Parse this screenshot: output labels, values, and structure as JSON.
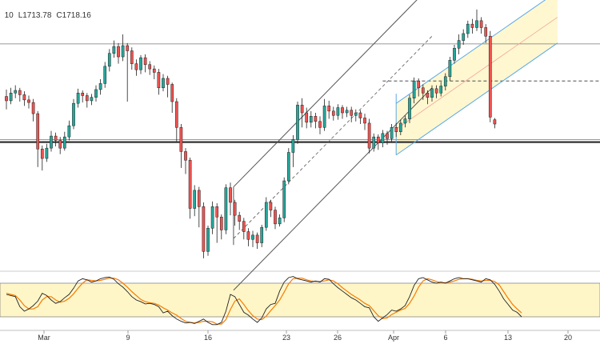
{
  "header": {
    "open_partial": "10",
    "low": "L1713.78",
    "close": "C1718.16"
  },
  "colors": {
    "up": "#26a69a",
    "down": "#ef5350",
    "ink": "#222222",
    "channel": "#5aa9e6",
    "band": "#fff6c8",
    "stoch_k": "#222222",
    "stoch_d": "#f57c00"
  },
  "chart_data": [
    {
      "type": "candlestick",
      "x_axis": {
        "ticks": [
          "Mar",
          "9",
          "16",
          "23",
          "26",
          "Apr",
          "6",
          "13",
          "20"
        ]
      },
      "x_range": [
        0,
        110
      ],
      "y_range": [
        1548,
        1862
      ],
      "candles": [
        [
          1750,
          1745,
          1735,
          1758
        ],
        [
          1745,
          1754,
          1741,
          1760
        ],
        [
          1754,
          1757,
          1748,
          1763
        ],
        [
          1757,
          1752,
          1744,
          1760
        ],
        [
          1752,
          1746,
          1739,
          1756
        ],
        [
          1746,
          1743,
          1736,
          1751
        ],
        [
          1743,
          1730,
          1721,
          1747
        ],
        [
          1730,
          1689,
          1668,
          1733
        ],
        [
          1689,
          1678,
          1664,
          1693
        ],
        [
          1678,
          1690,
          1674,
          1695
        ],
        [
          1690,
          1704,
          1686,
          1710
        ],
        [
          1704,
          1699,
          1692,
          1708
        ],
        [
          1699,
          1690,
          1683,
          1703
        ],
        [
          1690,
          1703,
          1687,
          1709
        ],
        [
          1703,
          1716,
          1699,
          1722
        ],
        [
          1716,
          1742,
          1712,
          1747
        ],
        [
          1742,
          1754,
          1737,
          1759
        ],
        [
          1754,
          1751,
          1743,
          1757
        ],
        [
          1751,
          1745,
          1737,
          1754
        ],
        [
          1745,
          1749,
          1740,
          1753
        ],
        [
          1749,
          1758,
          1744,
          1763
        ],
        [
          1758,
          1765,
          1752,
          1770
        ],
        [
          1765,
          1785,
          1760,
          1790
        ],
        [
          1785,
          1800,
          1779,
          1805
        ],
        [
          1800,
          1808,
          1795,
          1815
        ],
        [
          1808,
          1796,
          1788,
          1812
        ],
        [
          1796,
          1809,
          1791,
          1822
        ],
        [
          1809,
          1803,
          1744,
          1812
        ],
        [
          1803,
          1788,
          1781,
          1807
        ],
        [
          1788,
          1781,
          1774,
          1793
        ],
        [
          1781,
          1795,
          1776,
          1798
        ],
        [
          1795,
          1787,
          1778,
          1799
        ],
        [
          1787,
          1782,
          1775,
          1791
        ],
        [
          1782,
          1778,
          1770,
          1786
        ],
        [
          1778,
          1760,
          1752,
          1782
        ],
        [
          1760,
          1771,
          1756,
          1776
        ],
        [
          1771,
          1764,
          1749,
          1774
        ],
        [
          1764,
          1744,
          1731,
          1766
        ],
        [
          1744,
          1714,
          1698,
          1748
        ],
        [
          1714,
          1686,
          1667,
          1718
        ],
        [
          1686,
          1676,
          1660,
          1690
        ],
        [
          1676,
          1620,
          1608,
          1679
        ],
        [
          1620,
          1641,
          1611,
          1647
        ],
        [
          1641,
          1622,
          1598,
          1645
        ],
        [
          1622,
          1570,
          1562,
          1627
        ],
        [
          1570,
          1597,
          1565,
          1600
        ],
        [
          1597,
          1622,
          1590,
          1628
        ],
        [
          1622,
          1610,
          1580,
          1626
        ],
        [
          1610,
          1595,
          1584,
          1613
        ],
        [
          1595,
          1644,
          1590,
          1648
        ],
        [
          1644,
          1627,
          1612,
          1650
        ],
        [
          1627,
          1612,
          1600,
          1630
        ],
        [
          1612,
          1605,
          1595,
          1616
        ],
        [
          1605,
          1593,
          1584,
          1609
        ],
        [
          1593,
          1584,
          1576,
          1597
        ],
        [
          1584,
          1589,
          1575,
          1594
        ],
        [
          1589,
          1580,
          1573,
          1592
        ],
        [
          1580,
          1598,
          1575,
          1601
        ],
        [
          1598,
          1627,
          1594,
          1633
        ],
        [
          1627,
          1618,
          1610,
          1630
        ],
        [
          1618,
          1602,
          1596,
          1622
        ],
        [
          1602,
          1609,
          1599,
          1613
        ],
        [
          1609,
          1652,
          1604,
          1656
        ],
        [
          1652,
          1685,
          1648,
          1690
        ],
        [
          1685,
          1700,
          1668,
          1705
        ],
        [
          1700,
          1740,
          1695,
          1744
        ],
        [
          1740,
          1731,
          1714,
          1748
        ],
        [
          1731,
          1720,
          1713,
          1737
        ],
        [
          1720,
          1727,
          1714,
          1733
        ],
        [
          1727,
          1721,
          1713,
          1731
        ],
        [
          1721,
          1714,
          1706,
          1727
        ],
        [
          1714,
          1739,
          1710,
          1747
        ],
        [
          1739,
          1733,
          1724,
          1745
        ],
        [
          1733,
          1728,
          1722,
          1738
        ],
        [
          1728,
          1737,
          1723,
          1741
        ],
        [
          1737,
          1731,
          1724,
          1740
        ],
        [
          1731,
          1734,
          1726,
          1738
        ],
        [
          1734,
          1728,
          1720,
          1738
        ],
        [
          1728,
          1731,
          1721,
          1735
        ],
        [
          1731,
          1725,
          1718,
          1734
        ],
        [
          1725,
          1719,
          1711,
          1730
        ],
        [
          1719,
          1690,
          1684,
          1724
        ],
        [
          1690,
          1703,
          1686,
          1707
        ],
        [
          1703,
          1696,
          1688,
          1706
        ],
        [
          1696,
          1707,
          1691,
          1711
        ],
        [
          1707,
          1701,
          1694,
          1710
        ],
        [
          1701,
          1714,
          1697,
          1718
        ],
        [
          1714,
          1709,
          1703,
          1719
        ],
        [
          1709,
          1719,
          1705,
          1723
        ],
        [
          1719,
          1724,
          1714,
          1728
        ],
        [
          1724,
          1748,
          1719,
          1752
        ],
        [
          1748,
          1768,
          1742,
          1772
        ],
        [
          1768,
          1760,
          1750,
          1771
        ],
        [
          1760,
          1754,
          1746,
          1764
        ],
        [
          1754,
          1749,
          1741,
          1757
        ],
        [
          1749,
          1759,
          1744,
          1763
        ],
        [
          1759,
          1754,
          1748,
          1763
        ],
        [
          1754,
          1762,
          1750,
          1767
        ],
        [
          1762,
          1773,
          1757,
          1777
        ],
        [
          1773,
          1792,
          1768,
          1796
        ],
        [
          1792,
          1806,
          1788,
          1810
        ],
        [
          1806,
          1815,
          1799,
          1822
        ],
        [
          1815,
          1823,
          1810,
          1828
        ],
        [
          1823,
          1834,
          1818,
          1838
        ],
        [
          1834,
          1830,
          1823,
          1840
        ],
        [
          1830,
          1838,
          1826,
          1851
        ],
        [
          1838,
          1830,
          1823,
          1842
        ],
        [
          1830,
          1820,
          1812,
          1834
        ],
        [
          1820,
          1726,
          1720,
          1826
        ],
        [
          1723,
          1718,
          1713,
          1725
        ]
      ],
      "horizontal_lines": [
        {
          "price": 1811,
          "style": "thin"
        },
        {
          "price": 1700,
          "style": "thin"
        },
        {
          "price": 1697,
          "style": "thick"
        },
        {
          "price": 1768,
          "style": "dashed",
          "from_x": 84
        }
      ]
    },
    {
      "type": "line",
      "name": "stochastic",
      "y_range": [
        0,
        100
      ],
      "band": [
        20,
        80
      ],
      "k": [
        60,
        58,
        56,
        38,
        30,
        34,
        40,
        48,
        62,
        58,
        50,
        44,
        47,
        54,
        60,
        71,
        84,
        88,
        86,
        82,
        84,
        88,
        90,
        91,
        87,
        79,
        73,
        65,
        56,
        50,
        47,
        43,
        44,
        42,
        38,
        27,
        30,
        22,
        16,
        12,
        9,
        10,
        8,
        12,
        16,
        10,
        6,
        6,
        10,
        30,
        60,
        56,
        42,
        28,
        23,
        16,
        10,
        18,
        34,
        42,
        44,
        66,
        82,
        90,
        92,
        88,
        86,
        84,
        82,
        84,
        82,
        88,
        87,
        79,
        72,
        66,
        60,
        54,
        50,
        44,
        38,
        36,
        20,
        12,
        18,
        24,
        32,
        30,
        34,
        40,
        56,
        76,
        88,
        90,
        86,
        82,
        80,
        82,
        80,
        84,
        88,
        90,
        88,
        88,
        86,
        84,
        82,
        88,
        86,
        78,
        66,
        52,
        42,
        32,
        28,
        20
      ],
      "d": [
        62,
        60,
        58,
        50,
        40,
        34,
        34,
        38,
        50,
        56,
        56,
        50,
        46,
        48,
        53,
        61,
        71,
        80,
        86,
        85,
        84,
        85,
        87,
        89,
        89,
        86,
        80,
        73,
        65,
        58,
        51,
        47,
        45,
        44,
        41,
        36,
        32,
        27,
        23,
        17,
        12,
        10,
        9,
        10,
        12,
        12,
        11,
        7,
        7,
        15,
        33,
        48,
        52,
        42,
        31,
        22,
        16,
        15,
        21,
        31,
        40,
        50,
        64,
        79,
        88,
        89,
        89,
        86,
        84,
        83,
        83,
        84,
        86,
        84,
        79,
        72,
        66,
        60,
        55,
        50,
        44,
        40,
        31,
        22,
        17,
        18,
        24,
        28,
        32,
        35,
        44,
        57,
        73,
        84,
        88,
        86,
        83,
        81,
        81,
        82,
        84,
        87,
        88,
        88,
        87,
        85,
        84,
        85,
        85,
        83,
        77,
        65,
        53,
        42,
        34,
        27
      ]
    }
  ]
}
